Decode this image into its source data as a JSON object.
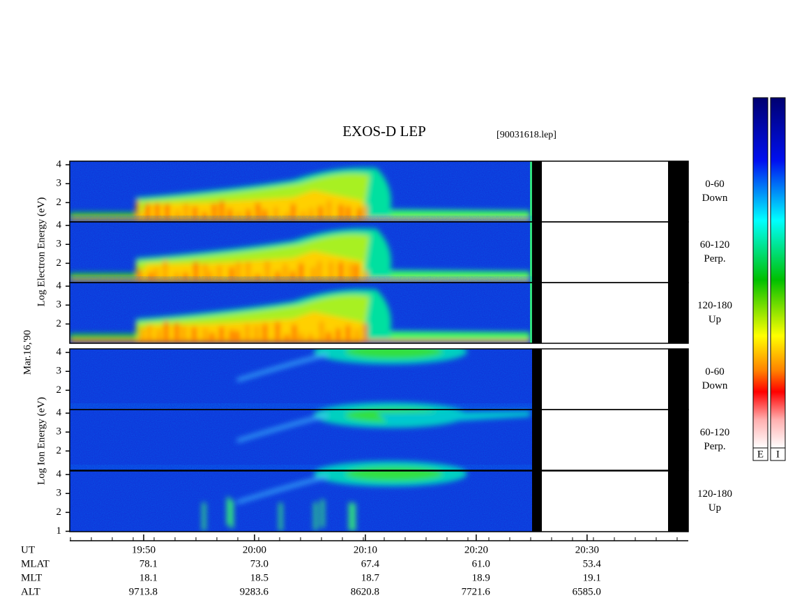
{
  "chart_data": {
    "type": "spectrogram",
    "title": "EXOS-D LEP",
    "subtitle": "[90031618.lep]",
    "y_labels": [
      "Log  Electron  Energy (eV)",
      "Mar.16,'90",
      "Log  Ion  Energy (eV)"
    ],
    "xlim": [
      1183.33,
      1239.13
    ],
    "xticks": [
      {
        "value": 1190,
        "label": "19:50"
      },
      {
        "value": 1200,
        "label": "20:00"
      },
      {
        "value": 1210,
        "label": "20:10"
      },
      {
        "value": 1220,
        "label": "20:20"
      },
      {
        "value": 1230,
        "label": "20:30"
      }
    ],
    "ut_label": "UT",
    "ephemeris": [
      {
        "name": "MLAT",
        "values": [
          "78.1",
          "73.0",
          "67.4",
          "61.0",
          "53.4"
        ]
      },
      {
        "name": "MLT",
        "values": [
          "18.1",
          "18.5",
          "18.7",
          "18.9",
          "19.1"
        ]
      },
      {
        "name": "ALT",
        "values": [
          "9713.8",
          "9283.6",
          "8620.8",
          "7721.6",
          "6585.0"
        ]
      }
    ],
    "panels": [
      {
        "species": "electron",
        "angle": "0-60",
        "direction": "Down",
        "ylim": [
          0.98,
          4.19
        ],
        "yticks": [
          2,
          3,
          4
        ]
      },
      {
        "species": "electron",
        "angle": "60-120",
        "direction": "Perp.",
        "ylim": [
          0.98,
          4.19
        ],
        "yticks": [
          2,
          3,
          4
        ]
      },
      {
        "species": "electron",
        "angle": "120-180",
        "direction": "Up",
        "ylim": [
          0.98,
          4.19
        ],
        "yticks": [
          2,
          3,
          4
        ]
      },
      {
        "species": "ion",
        "angle": "0-60",
        "direction": "Down",
        "ylim": [
          0.98,
          4.19
        ],
        "yticks": [
          2,
          3,
          4
        ]
      },
      {
        "species": "ion",
        "angle": "60-120",
        "direction": "Perp.",
        "ylim": [
          0.98,
          4.19
        ],
        "yticks": [
          2,
          3,
          4
        ]
      },
      {
        "species": "ion",
        "angle": "120-180",
        "direction": "Up",
        "ylim": [
          0.98,
          4.19
        ],
        "yticks": [
          1,
          2,
          3,
          4
        ]
      }
    ],
    "colorbars": [
      "E",
      "I"
    ]
  }
}
